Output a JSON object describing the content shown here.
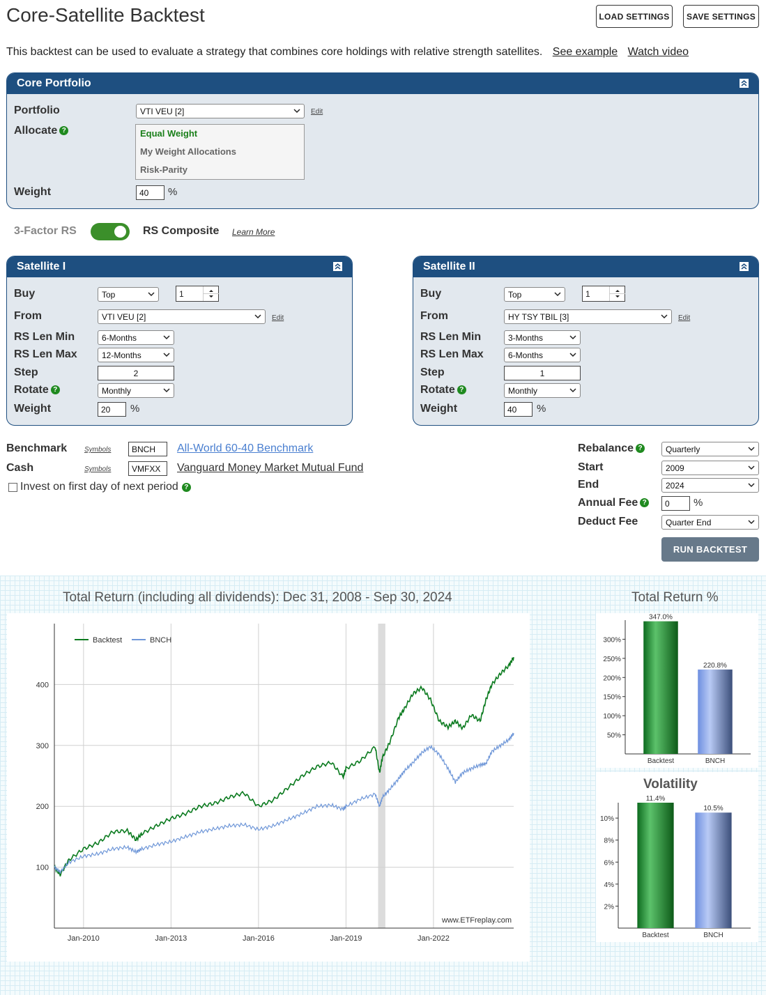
{
  "page": {
    "title": "Core-Satellite Backtest",
    "load_settings": "LOAD SETTINGS",
    "save_settings": "SAVE SETTINGS",
    "intro": "This backtest can be used to evaluate a strategy that combines core holdings with relative strength satellites.",
    "see_example": "See example",
    "watch_video": "Watch video"
  },
  "core": {
    "title": "Core Portfolio",
    "portfolio_label": "Portfolio",
    "portfolio_value": "VTI VEU [2]",
    "edit": "Edit",
    "allocate_label": "Allocate",
    "allocate_options": [
      "Equal Weight",
      "My Weight Allocations",
      "Risk-Parity"
    ],
    "weight_label": "Weight",
    "weight_value": "40",
    "pct": "%"
  },
  "rs_toggle": {
    "left": "3-Factor RS",
    "right": "RS Composite",
    "learn_more": "Learn More"
  },
  "satellite1": {
    "title": "Satellite I",
    "buy_label": "Buy",
    "buy_value": "Top",
    "buy_count": "1",
    "from_label": "From",
    "from_value": "VTI VEU [2]",
    "edit": "Edit",
    "rs_min_label": "RS Len Min",
    "rs_min_value": "6-Months",
    "rs_max_label": "RS Len Max",
    "rs_max_value": "12-Months",
    "step_label": "Step",
    "step_value": "2",
    "rotate_label": "Rotate",
    "rotate_value": "Monthly",
    "weight_label": "Weight",
    "weight_value": "20",
    "pct": "%"
  },
  "satellite2": {
    "title": "Satellite II",
    "buy_label": "Buy",
    "buy_value": "Top",
    "buy_count": "1",
    "from_label": "From",
    "from_value": "HY TSY TBIL [3]",
    "edit": "Edit",
    "rs_min_label": "RS Len Min",
    "rs_min_value": "3-Months",
    "rs_max_label": "RS Len Max",
    "rs_max_value": "6-Months",
    "step_label": "Step",
    "step_value": "1",
    "rotate_label": "Rotate",
    "rotate_value": "Monthly",
    "weight_label": "Weight",
    "weight_value": "40",
    "pct": "%"
  },
  "settings": {
    "benchmark_label": "Benchmark",
    "symbols": "Symbols",
    "benchmark_symbol": "BNCH",
    "benchmark_name": "All-World 60-40 Benchmark",
    "cash_label": "Cash",
    "cash_symbol": "VMFXX",
    "cash_name": "Vanguard Money Market Mutual Fund",
    "invest_label": "Invest on first day of next period",
    "rebalance_label": "Rebalance",
    "rebalance_value": "Quarterly",
    "start_label": "Start",
    "start_value": "2009",
    "end_label": "End",
    "end_value": "2024",
    "fee_label": "Annual Fee",
    "fee_value": "0",
    "pct": "%",
    "deduct_label": "Deduct Fee",
    "deduct_value": "Quarter End",
    "run": "RUN BACKTEST"
  },
  "colors": {
    "header": "#1e4f80",
    "backtest": "#0a7a1e",
    "bench": "#6f97d8",
    "accent_green": "#3b8f2a"
  },
  "chart_data": [
    {
      "type": "line",
      "title": "Total Return (including all dividends): Dec 31, 2008 - Sep 30, 2024",
      "x_ticks": [
        "Jan-2010",
        "Jan-2013",
        "Jan-2016",
        "Jan-2019",
        "Jan-2022"
      ],
      "y_ticks": [
        100,
        200,
        300,
        400
      ],
      "ylim": [
        0,
        500
      ],
      "xlim": [
        2009.0,
        2024.75
      ],
      "legend": "top-left",
      "watermark": "www.ETFreplay.com",
      "series": [
        {
          "name": "Backtest",
          "color": "#0a7a1e",
          "x": [
            2009.0,
            2009.2,
            2009.5,
            2010.0,
            2010.5,
            2011.0,
            2011.5,
            2011.8,
            2012.0,
            2012.5,
            2013.0,
            2013.5,
            2014.0,
            2014.5,
            2015.0,
            2015.5,
            2016.0,
            2016.5,
            2017.0,
            2017.5,
            2018.0,
            2018.5,
            2018.9,
            2019.0,
            2019.5,
            2020.0,
            2020.15,
            2020.25,
            2020.5,
            2020.8,
            2021.0,
            2021.3,
            2021.6,
            2021.9,
            2022.2,
            2022.5,
            2022.75,
            2023.0,
            2023.3,
            2023.6,
            2023.8,
            2024.0,
            2024.3,
            2024.6,
            2024.75
          ],
          "y": [
            100,
            88,
            112,
            130,
            140,
            158,
            160,
            145,
            155,
            168,
            180,
            188,
            200,
            205,
            215,
            222,
            200,
            210,
            230,
            250,
            265,
            272,
            248,
            262,
            275,
            298,
            255,
            280,
            305,
            345,
            360,
            385,
            395,
            375,
            340,
            330,
            340,
            328,
            350,
            340,
            375,
            400,
            418,
            432,
            445
          ]
        },
        {
          "name": "BNCH",
          "color": "#6f97d8",
          "x": [
            2009.0,
            2009.2,
            2009.5,
            2010.0,
            2010.5,
            2011.0,
            2011.5,
            2011.8,
            2012.0,
            2012.5,
            2013.0,
            2013.5,
            2014.0,
            2014.5,
            2015.0,
            2015.5,
            2016.0,
            2016.5,
            2017.0,
            2017.5,
            2018.0,
            2018.5,
            2018.9,
            2019.0,
            2019.5,
            2020.0,
            2020.15,
            2020.25,
            2020.5,
            2020.8,
            2021.0,
            2021.3,
            2021.6,
            2021.9,
            2022.2,
            2022.5,
            2022.75,
            2023.0,
            2023.3,
            2023.6,
            2023.8,
            2024.0,
            2024.3,
            2024.6,
            2024.75
          ],
          "y": [
            100,
            92,
            108,
            118,
            122,
            130,
            133,
            125,
            130,
            137,
            142,
            150,
            158,
            163,
            168,
            170,
            162,
            168,
            178,
            188,
            200,
            202,
            195,
            200,
            212,
            220,
            200,
            215,
            228,
            245,
            258,
            272,
            288,
            298,
            285,
            262,
            240,
            255,
            262,
            268,
            270,
            290,
            300,
            310,
            320
          ]
        }
      ]
    },
    {
      "type": "bar",
      "title": "Total Return %",
      "categories": [
        "Backtest",
        "BNCH"
      ],
      "values": [
        347.0,
        220.8
      ],
      "labels": [
        "347.0%",
        "220.8%"
      ],
      "y_ticks": [
        "50%",
        "100%",
        "150%",
        "200%",
        "250%",
        "300%"
      ],
      "ylim": [
        0,
        350
      ]
    },
    {
      "type": "bar",
      "title": "Volatility",
      "categories": [
        "Backtest",
        "BNCH"
      ],
      "values": [
        11.4,
        10.5
      ],
      "labels": [
        "11.4%",
        "10.5%"
      ],
      "y_ticks": [
        "2%",
        "4%",
        "6%",
        "8%",
        "10%"
      ],
      "ylim": [
        0,
        11.4
      ]
    }
  ]
}
